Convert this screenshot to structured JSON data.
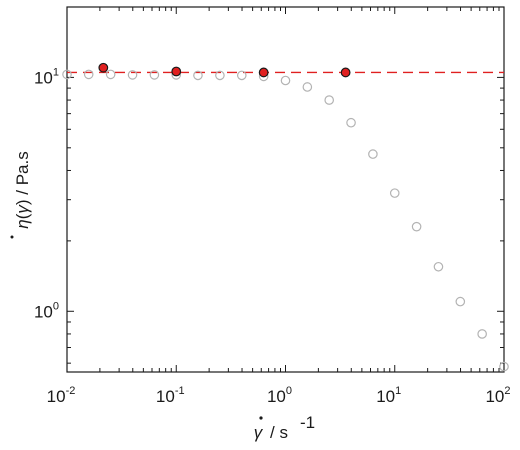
{
  "chart_data": {
    "type": "scatter",
    "xscale": "log",
    "yscale": "log",
    "xlim": [
      0.01,
      100
    ],
    "ylim": [
      0.55,
      20
    ],
    "grid": false,
    "legend": "none",
    "xlabel": "γ̇ / s⁻¹",
    "ylabel": "η(γ̇) / Pa.s",
    "x_ticks": [
      {
        "value": 0.01,
        "base": "10",
        "exp": "-2"
      },
      {
        "value": 0.1,
        "base": "10",
        "exp": "-1"
      },
      {
        "value": 1,
        "base": "10",
        "exp": "0"
      },
      {
        "value": 10,
        "base": "10",
        "exp": "1"
      },
      {
        "value": 100,
        "base": "10",
        "exp": "2"
      }
    ],
    "y_ticks": [
      {
        "value": 1,
        "base": "10",
        "exp": "0"
      },
      {
        "value": 10,
        "base": "10",
        "exp": "1"
      }
    ],
    "series": [
      {
        "marker": "open-circle",
        "color": "#b3b3b3",
        "x": [
          0.01,
          0.0158,
          0.0251,
          0.0398,
          0.0631,
          0.1,
          0.158,
          0.251,
          0.398,
          0.631,
          1.0,
          1.585,
          2.512,
          3.981,
          6.31,
          10.0,
          15.85,
          25.12,
          39.81,
          63.1,
          100.0
        ],
        "y": [
          10.3,
          10.3,
          10.3,
          10.25,
          10.25,
          10.25,
          10.2,
          10.2,
          10.2,
          10.1,
          9.7,
          9.1,
          8.0,
          6.4,
          4.7,
          3.2,
          2.3,
          1.55,
          1.1,
          0.8,
          0.58
        ]
      },
      {
        "marker": "filled-circle",
        "color": "#e02020",
        "x": [
          0.0215,
          0.1,
          0.631,
          3.55
        ],
        "y": [
          11.0,
          10.6,
          10.5,
          10.5
        ]
      }
    ],
    "reference_line": {
      "style": "dashed",
      "color": "#e02020",
      "y": 10.5
    }
  }
}
